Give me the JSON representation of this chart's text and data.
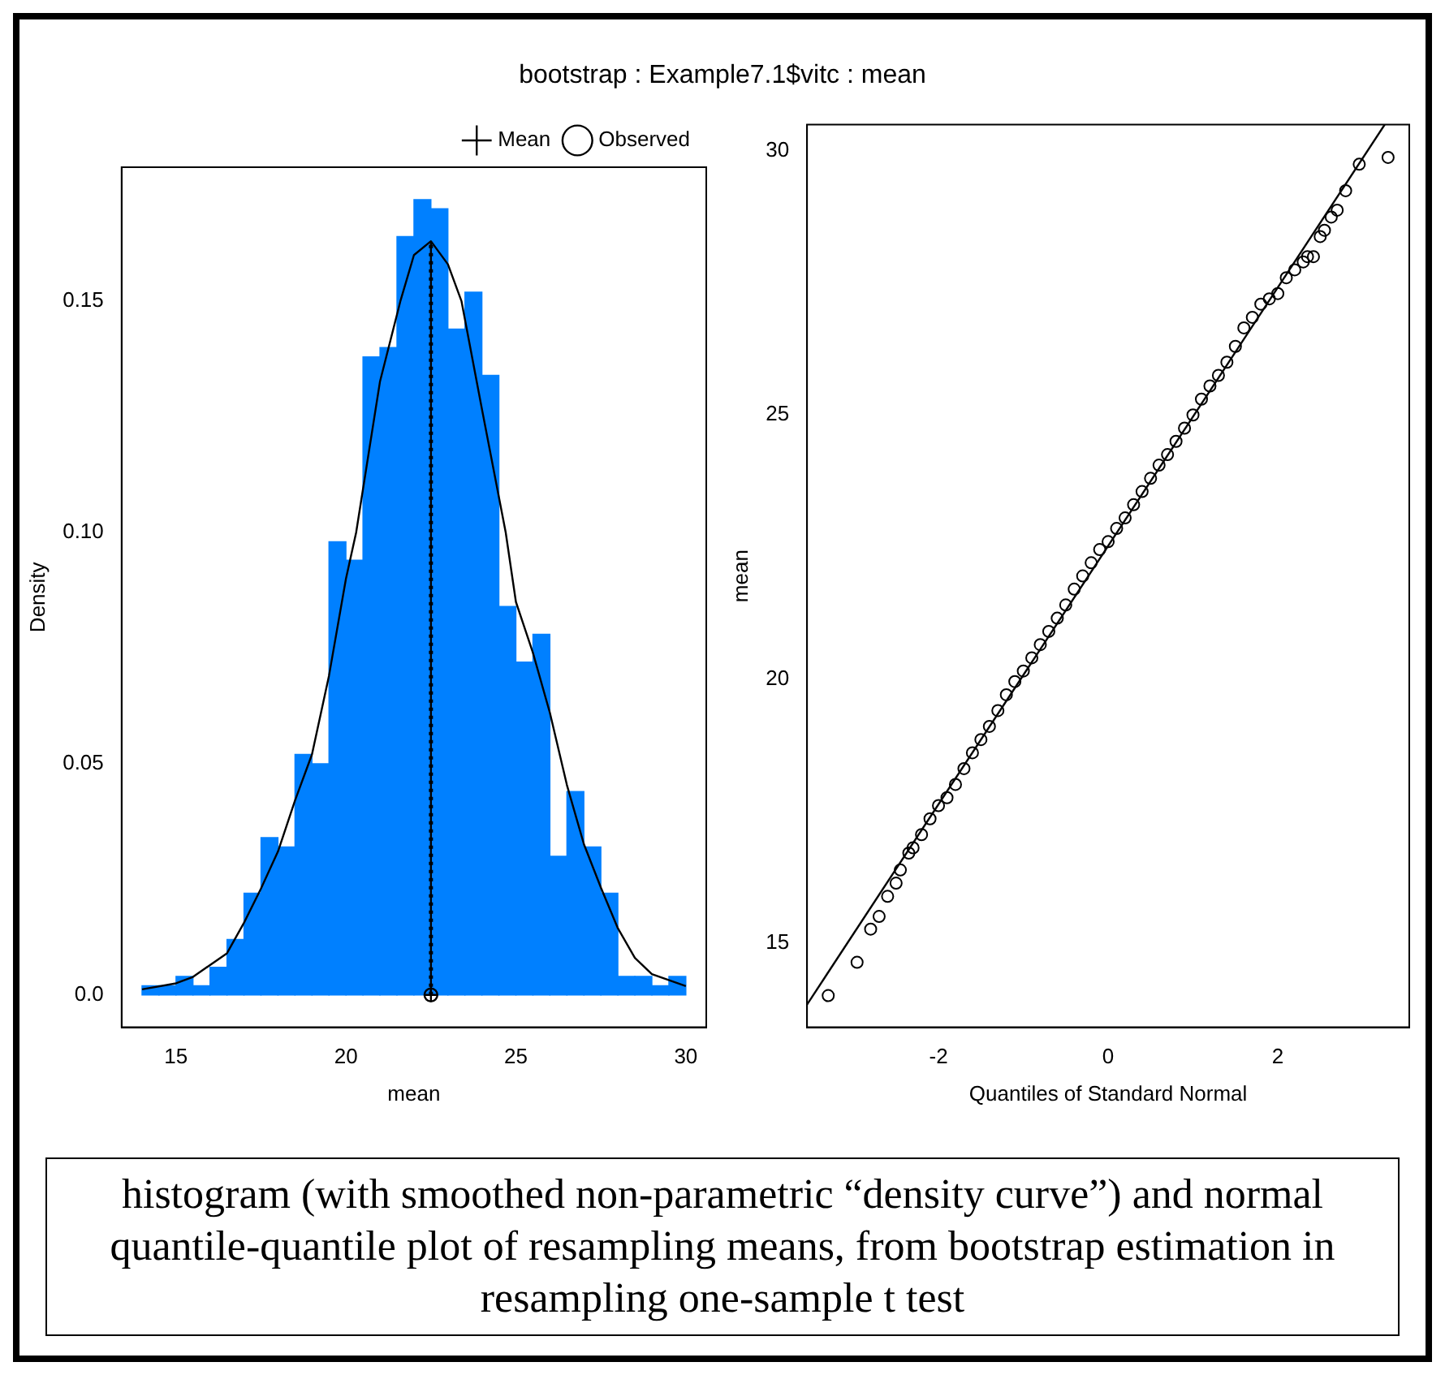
{
  "chart_data": [
    {
      "type": "histogram",
      "title": "bootstrap : Example7.1$vitc : mean",
      "xlabel": "mean",
      "ylabel": "Density",
      "color": "#0080ff",
      "bins": [
        14,
        14.5,
        15,
        15.5,
        16,
        16.5,
        17,
        17.5,
        18,
        18.5,
        19,
        19.5,
        20,
        20.5,
        21,
        21.5,
        22,
        22.5,
        23,
        23.5,
        24,
        24.5,
        25,
        25.5,
        26,
        26.5,
        27,
        27.5,
        28,
        28.5,
        29,
        29.5,
        30
      ],
      "values": [
        0.002,
        0.002,
        0.004,
        0.002,
        0.006,
        0.012,
        0.022,
        0.034,
        0.032,
        0.052,
        0.05,
        0.098,
        0.094,
        0.138,
        0.14,
        0.164,
        0.172,
        0.17,
        0.144,
        0.152,
        0.134,
        0.084,
        0.072,
        0.078,
        0.03,
        0.044,
        0.032,
        0.022,
        0.004,
        0.004,
        0.002,
        0.004
      ],
      "xlim": [
        13.4,
        30.6
      ],
      "ylim": [
        -0.007,
        0.179
      ],
      "xticks": [
        15,
        20,
        25,
        30
      ],
      "yticks": [
        {
          "value": 0,
          "label": "0.0"
        },
        0.05,
        {
          "value": 0.1,
          "label": "0.10"
        },
        0.15
      ],
      "grid": false,
      "legend": "top right",
      "series": [
        {
          "type": "line",
          "color": "#000000",
          "line_style": "solid",
          "marker": "none",
          "x": [
            14,
            15,
            15.5,
            16.5,
            17,
            17.5,
            18,
            18.5,
            19,
            19.5,
            20,
            20.3,
            21,
            21.6,
            22,
            22.5,
            23,
            23.4,
            24,
            24.7,
            25,
            25.5,
            26,
            26.5,
            27,
            27.5,
            28,
            28.5,
            29,
            30
          ],
          "values": [
            0.0012,
            0.0025,
            0.0039,
            0.009,
            0.0156,
            0.023,
            0.031,
            0.042,
            0.052,
            0.069,
            0.09,
            0.1,
            0.1326,
            0.15,
            0.16,
            0.163,
            0.158,
            0.15,
            0.1267,
            0.1,
            0.085,
            0.074,
            0.061,
            0.0454,
            0.0326,
            0.0232,
            0.0144,
            0.008,
            0.0045,
            0.0019
          ]
        },
        {
          "name": "Observed",
          "type": "line",
          "color": "#000000",
          "line_style": "solid",
          "marker": "circle",
          "x": [
            22.5,
            22.5
          ],
          "values": [
            0,
            0.163
          ]
        },
        {
          "name": "Mean",
          "type": "line",
          "color": "#000000",
          "line_style": "dotted",
          "marker": "cross",
          "x": [
            22.5,
            22.5
          ],
          "values": [
            0,
            0.163
          ]
        }
      ],
      "annotations": [
        "histogram (with smoothed non-parametric “density curve”) and normal quantile-quantile plot of resampling means, from bootstrap estimation in resampling one-sample t test"
      ]
    },
    {
      "type": "scatter",
      "xlabel": "Quantiles of Standard Normal",
      "ylabel": "mean",
      "xlim": [
        -3.55,
        3.55
      ],
      "ylim": [
        13.4,
        30.5
      ],
      "xticks": [
        -2,
        0,
        2
      ],
      "yticks": [
        15,
        20,
        25,
        30
      ],
      "grid": false,
      "legend": false,
      "series": [
        {
          "type": "scatter",
          "color": "#000000",
          "marker": "circle",
          "x": [
            -3.3,
            -2.96,
            -2.8,
            -2.7,
            -2.6,
            -2.5,
            -2.45,
            -2.35,
            -2.3,
            -2.2,
            -2.1,
            -2.0,
            -1.9,
            -1.8,
            -1.7,
            -1.6,
            -1.5,
            -1.4,
            -1.3,
            -1.2,
            -1.1,
            -1.0,
            -0.9,
            -0.8,
            -0.7,
            -0.6,
            -0.5,
            -0.4,
            -0.3,
            -0.2,
            -0.1,
            0,
            0.1,
            0.2,
            0.3,
            0.4,
            0.5,
            0.6,
            0.7,
            0.8,
            0.9,
            1.0,
            1.1,
            1.2,
            1.3,
            1.4,
            1.5,
            1.6,
            1.7,
            1.8,
            1.9,
            2.0,
            2.1,
            2.2,
            2.3,
            2.35,
            2.42,
            2.5,
            2.55,
            2.63,
            2.7,
            2.8,
            2.96,
            3.3
          ],
          "values": [
            14.0,
            14.63,
            15.26,
            15.5,
            15.88,
            16.13,
            16.38,
            16.7,
            16.8,
            17.05,
            17.35,
            17.6,
            17.75,
            18.0,
            18.3,
            18.6,
            18.85,
            19.1,
            19.4,
            19.7,
            19.95,
            20.15,
            20.4,
            20.65,
            20.9,
            21.15,
            21.4,
            21.7,
            21.95,
            22.2,
            22.45,
            22.6,
            22.85,
            23.05,
            23.3,
            23.55,
            23.8,
            24.05,
            24.25,
            24.5,
            24.75,
            25.0,
            25.3,
            25.55,
            25.75,
            26.0,
            26.3,
            26.65,
            26.85,
            27.1,
            27.2,
            27.3,
            27.6,
            27.75,
            27.9,
            28.0,
            28.0,
            28.38,
            28.5,
            28.75,
            28.88,
            29.25,
            29.75,
            29.88
          ]
        },
        {
          "type": "line",
          "color": "#000000",
          "line_style": "solid",
          "marker": "none",
          "x": [
            -3.55,
            3.26
          ],
          "values": [
            13.83,
            30.5
          ]
        }
      ]
    }
  ]
}
